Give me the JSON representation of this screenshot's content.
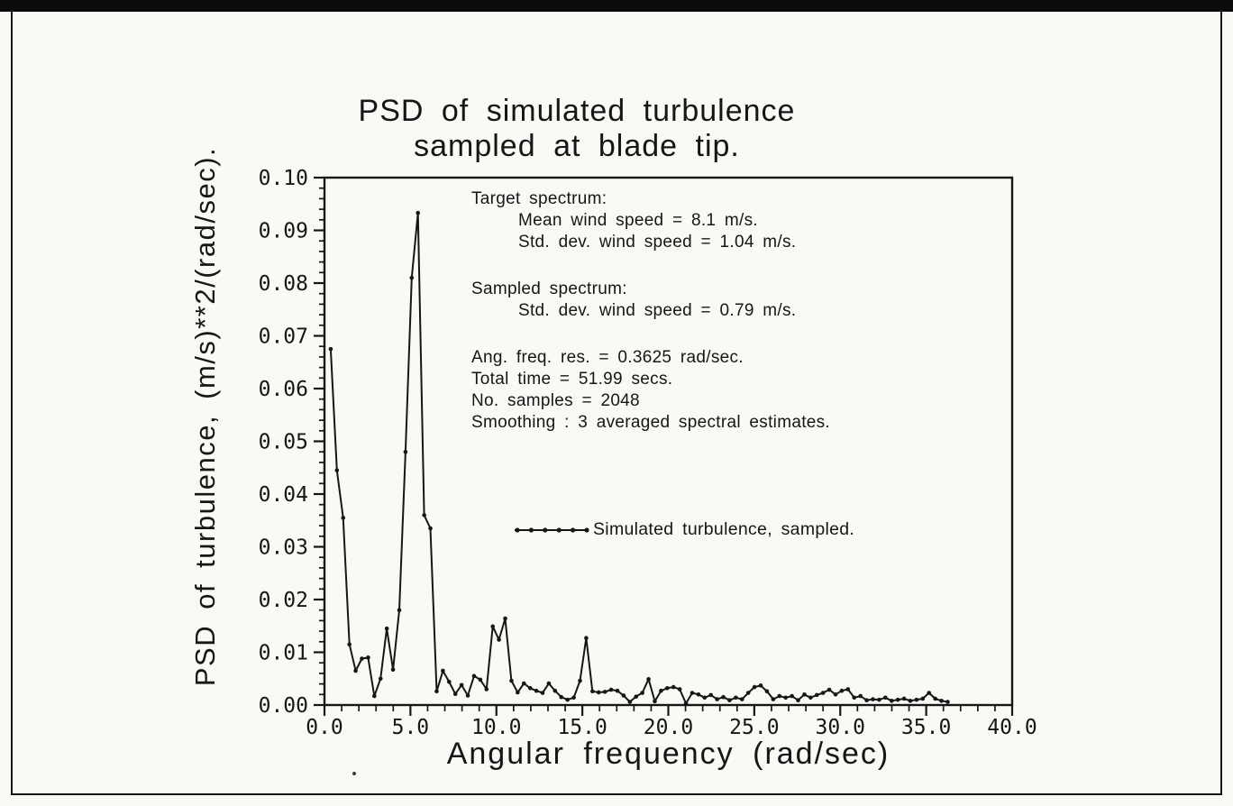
{
  "colors": {
    "ink": "#161616",
    "paper": "#faf9f6"
  },
  "chart_data": {
    "type": "line",
    "title_line1": "PSD of simulated turbulence",
    "title_line2": "sampled at blade tip.",
    "xlabel": "Angular frequency (rad/sec)",
    "ylabel": "PSD of turbulence, (m/s)**2/(rad/sec).",
    "xlim": [
      0,
      40
    ],
    "ylim": [
      0,
      0.1
    ],
    "x_ticks": {
      "values": [
        0,
        5,
        10,
        15,
        20,
        25,
        30,
        35,
        40
      ],
      "labels": [
        "0.0",
        "5.0",
        "10.0",
        "15.0",
        "20.0",
        "25.0",
        "30.0",
        "35.0",
        "40.0"
      ]
    },
    "y_ticks": {
      "values": [
        0.0,
        0.01,
        0.02,
        0.03,
        0.04,
        0.05,
        0.06,
        0.07,
        0.08,
        0.09,
        0.1
      ],
      "labels": [
        "0.00",
        "0.01",
        "0.02",
        "0.03",
        "0.04",
        "0.05",
        "0.06",
        "0.07",
        "0.08",
        "0.09",
        "0.10"
      ]
    },
    "x_minor_step": 1.0,
    "y_minor_step": 0.002,
    "grid": "off",
    "legend_position": "center-right of plot",
    "annotations": [
      {
        "text": "Target spectrum:"
      },
      {
        "text": "Mean wind speed = 8.1 m/s."
      },
      {
        "text": "Std. dev. wind speed = 1.04 m/s."
      },
      {
        "text": "Sampled spectrum:"
      },
      {
        "text": "Std. dev. wind speed = 0.79 m/s."
      },
      {
        "text": "Ang. freq. res. = 0.3625 rad/sec."
      },
      {
        "text": "Total time = 51.99 secs."
      },
      {
        "text": "No. samples = 2048"
      },
      {
        "text": "Smoothing : 3 averaged spectral estimates."
      }
    ],
    "series": [
      {
        "name": "Simulated turbulence, sampled.",
        "marker": "dot",
        "x_start": 0.3625,
        "x_step": 0.3625,
        "values": [
          0.0675,
          0.0445,
          0.0355,
          0.0115,
          0.0065,
          0.0088,
          0.009,
          0.0017,
          0.005,
          0.0145,
          0.0067,
          0.018,
          0.048,
          0.081,
          0.0933,
          0.036,
          0.0335,
          0.0026,
          0.0065,
          0.0044,
          0.0021,
          0.0038,
          0.0018,
          0.0055,
          0.0048,
          0.003,
          0.0149,
          0.0124,
          0.0164,
          0.0046,
          0.0024,
          0.0041,
          0.0032,
          0.0027,
          0.0023,
          0.0041,
          0.0027,
          0.0015,
          0.001,
          0.0014,
          0.0046,
          0.0127,
          0.0026,
          0.0024,
          0.0025,
          0.0029,
          0.0027,
          0.0018,
          0.0006,
          0.0016,
          0.0023,
          0.0049,
          0.0007,
          0.0027,
          0.0032,
          0.0034,
          0.003,
          0.0003,
          0.0023,
          0.002,
          0.0014,
          0.0019,
          0.0011,
          0.0015,
          0.0009,
          0.0014,
          0.0011,
          0.0023,
          0.0034,
          0.0037,
          0.0026,
          0.0011,
          0.0017,
          0.0014,
          0.0017,
          0.0009,
          0.002,
          0.0014,
          0.0019,
          0.0023,
          0.0029,
          0.002,
          0.0027,
          0.003,
          0.0014,
          0.0017,
          0.0009,
          0.0011,
          0.001,
          0.0014,
          0.0008,
          0.001,
          0.0012,
          0.0008,
          0.001,
          0.0012,
          0.0023,
          0.0012,
          0.0008,
          0.0006
        ]
      }
    ]
  }
}
